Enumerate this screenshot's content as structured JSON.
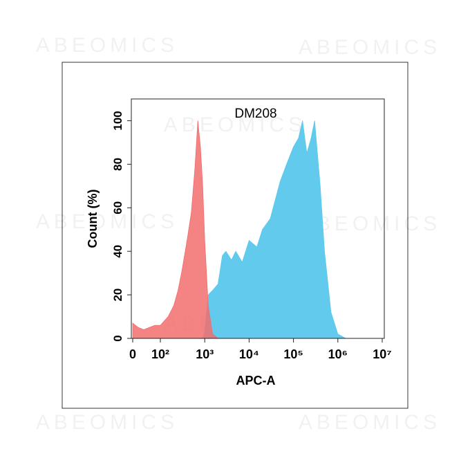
{
  "chart_data": {
    "type": "area",
    "title": "DM208",
    "xlabel": "APC-A",
    "ylabel": "Count (%)",
    "watermark": "ABEOMICS",
    "xscale": "biexponential",
    "x": [
      0,
      20,
      40,
      60,
      80,
      100,
      150,
      200,
      250,
      300,
      400,
      500,
      600,
      700,
      800,
      900,
      1000,
      1200,
      1500,
      2000,
      2500,
      3000,
      4000,
      5000,
      7000,
      10000,
      15000,
      20000,
      30000,
      50000,
      70000,
      100000,
      130000,
      160000,
      200000,
      250000,
      300000,
      400000,
      500000,
      700000,
      1000000,
      1500000
    ],
    "series": [
      {
        "color": "#f26d6d",
        "values": [
          7,
          5,
          4,
          5,
          6,
          6,
          10,
          15,
          22,
          30,
          45,
          58,
          78,
          100,
          88,
          70,
          45,
          15,
          2,
          0,
          0,
          0,
          0,
          0,
          0,
          0,
          0,
          0,
          0,
          0,
          0,
          0,
          0,
          0,
          0,
          0,
          0,
          0,
          0,
          0,
          0,
          0
        ]
      },
      {
        "color": "#5ac8ec",
        "values": [
          0,
          0,
          0,
          0,
          0,
          0,
          0,
          0,
          0,
          0,
          0,
          0,
          0,
          0,
          0,
          0,
          3,
          20,
          22,
          25,
          38,
          40,
          36,
          40,
          35,
          45,
          42,
          50,
          55,
          72,
          80,
          88,
          92,
          100,
          85,
          92,
          100,
          70,
          40,
          12,
          2,
          0
        ]
      }
    ],
    "xlim": [
      0,
      10000000
    ],
    "xticks": [
      0,
      {
        "value": 100,
        "label": "10²"
      },
      {
        "value": 1000,
        "label": "10³"
      },
      {
        "value": 10000,
        "label": "10⁴"
      },
      {
        "value": 100000,
        "label": "10⁵"
      },
      {
        "value": 1000000,
        "label": "10⁶"
      },
      {
        "value": 10000000,
        "label": "10⁷"
      }
    ],
    "ylim": [
      0,
      110
    ],
    "yticks": [
      0,
      20,
      40,
      60,
      80,
      100
    ]
  }
}
